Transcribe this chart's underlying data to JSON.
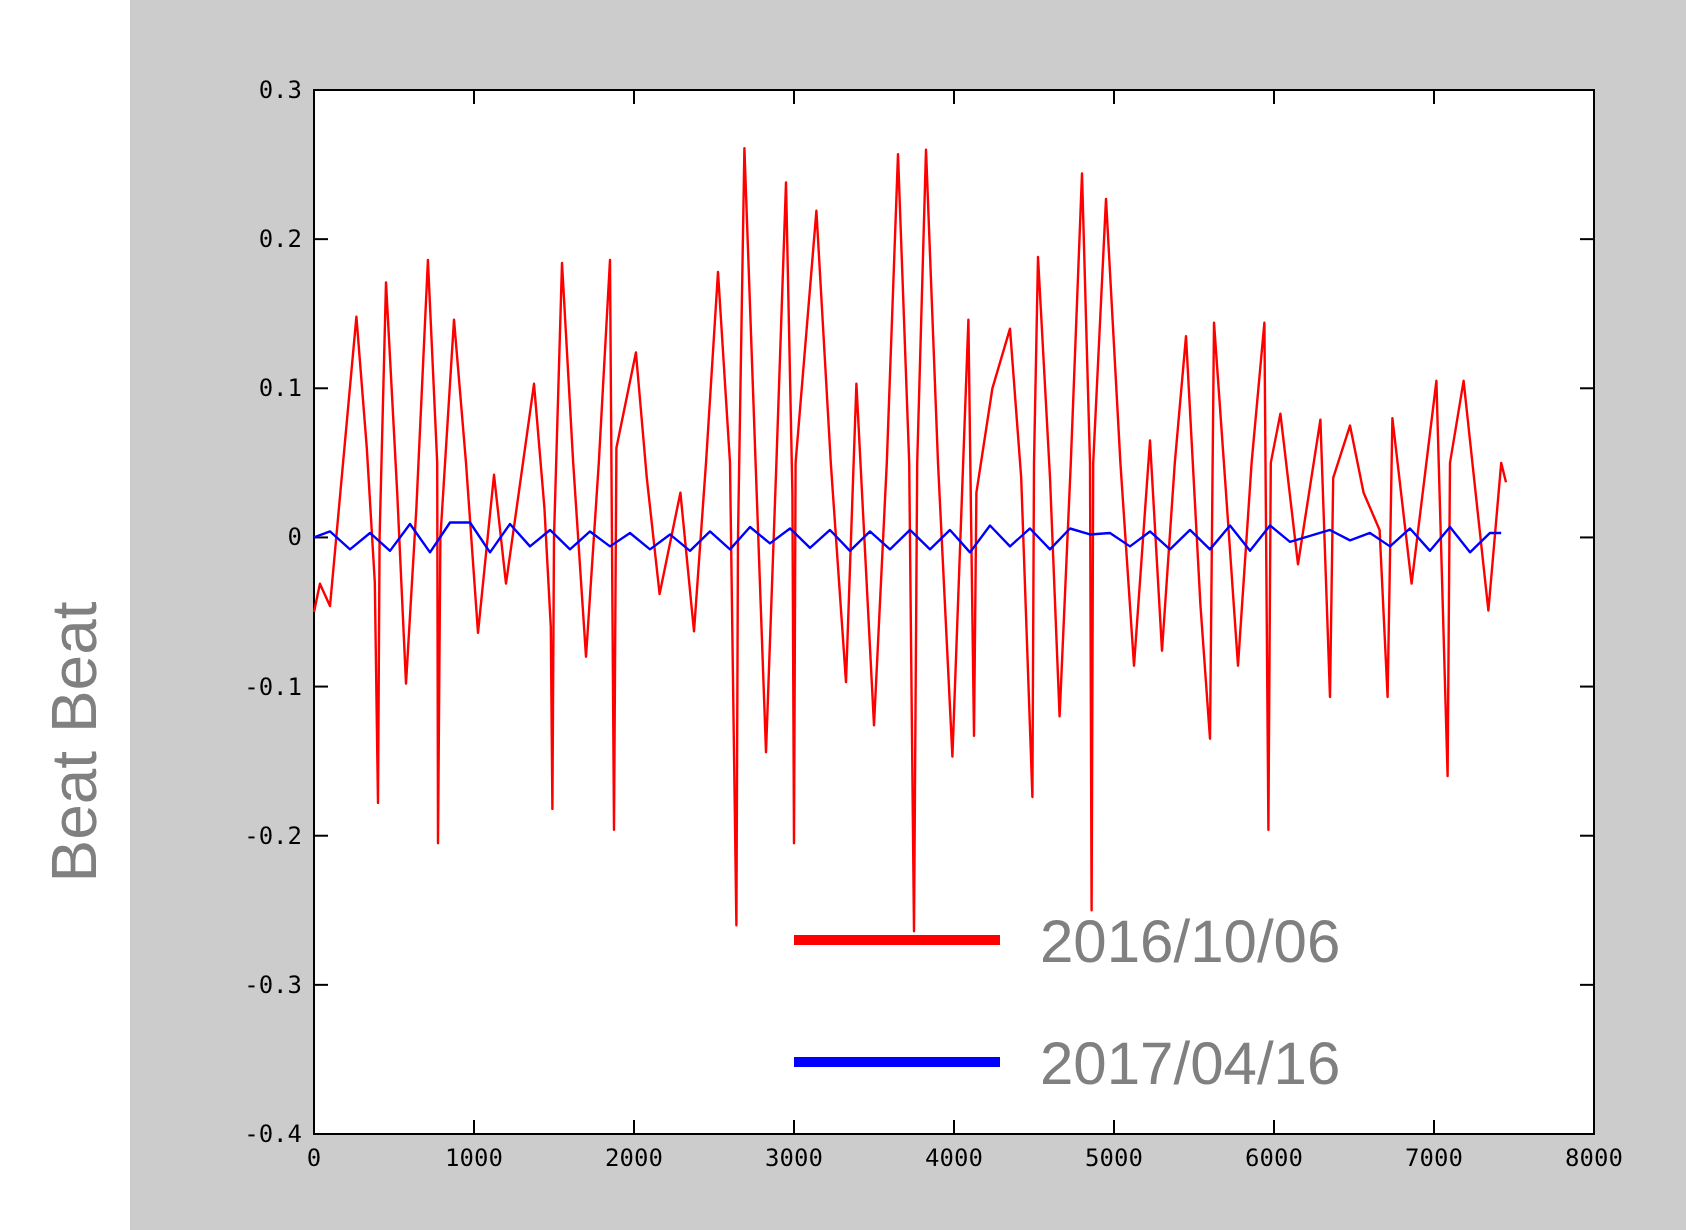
{
  "chart_data": {
    "type": "line",
    "ylabel": "Beat Beat",
    "xlim": [
      0,
      8000
    ],
    "ylim": [
      -0.4,
      0.3
    ],
    "xticks": [
      0,
      1000,
      2000,
      3000,
      4000,
      5000,
      6000,
      7000,
      8000
    ],
    "yticks": [
      -0.4,
      -0.3,
      -0.2,
      -0.1,
      0,
      0.1,
      0.2,
      0.3
    ],
    "grid": false,
    "legend": "bottom",
    "line_style": "solid",
    "series": [
      {
        "name": "2016/10/06",
        "color": "#ff0000",
        "x": [
          0,
          37,
          100,
          265,
          330,
          380,
          400,
          410,
          450,
          520,
          575,
          640,
          712,
          770,
          775,
          790,
          875,
          950,
          1025,
          1125,
          1200,
          1280,
          1375,
          1440,
          1480,
          1490,
          1500,
          1550,
          1620,
          1700,
          1780,
          1850,
          1875,
          1890,
          2012,
          2080,
          2160,
          2290,
          2375,
          2450,
          2525,
          2600,
          2640,
          2650,
          2690,
          2760,
          2825,
          2890,
          2950,
          2990,
          3000,
          3010,
          3140,
          3230,
          3325,
          3390,
          3500,
          3580,
          3650,
          3720,
          3750,
          3770,
          3825,
          3900,
          3990,
          4090,
          4125,
          4140,
          4240,
          4350,
          4420,
          4490,
          4500,
          4525,
          4600,
          4660,
          4730,
          4800,
          4850,
          4860,
          4870,
          4950,
          5040,
          5125,
          5225,
          5300,
          5380,
          5450,
          5540,
          5600,
          5625,
          5700,
          5775,
          5860,
          5940,
          5965,
          5980,
          6040,
          6150,
          6290,
          6350,
          6370,
          6475,
          6560,
          6660,
          6710,
          6740,
          6860,
          7015,
          7085,
          7100,
          7185,
          7260,
          7340,
          7420,
          7450
        ],
        "values": [
          -0.05,
          -0.031,
          -0.046,
          0.148,
          0.06,
          -0.03,
          -0.178,
          0.0,
          0.171,
          0.03,
          -0.098,
          0.02,
          0.186,
          0.05,
          -0.205,
          0.0,
          0.146,
          0.05,
          -0.064,
          0.042,
          -0.031,
          0.03,
          0.103,
          0.02,
          -0.06,
          -0.182,
          0.0,
          0.184,
          0.05,
          -0.08,
          0.05,
          0.186,
          -0.196,
          0.06,
          0.124,
          0.04,
          -0.038,
          0.03,
          -0.063,
          0.05,
          0.178,
          0.05,
          -0.26,
          0.0,
          0.261,
          0.05,
          -0.144,
          0.05,
          0.238,
          0.03,
          -0.205,
          0.05,
          0.219,
          0.05,
          -0.097,
          0.103,
          -0.126,
          0.05,
          0.257,
          0.05,
          -0.264,
          0.05,
          0.26,
          0.05,
          -0.147,
          0.146,
          -0.133,
          0.03,
          0.1,
          0.14,
          0.04,
          -0.174,
          0.05,
          0.188,
          0.04,
          -0.12,
          0.05,
          0.244,
          0.05,
          -0.25,
          0.05,
          0.227,
          0.05,
          -0.086,
          0.065,
          -0.076,
          0.05,
          0.135,
          -0.045,
          -0.135,
          0.144,
          0.03,
          -0.086,
          0.05,
          0.144,
          -0.196,
          0.05,
          0.083,
          -0.018,
          0.079,
          -0.107,
          0.04,
          0.075,
          0.03,
          0.005,
          -0.107,
          0.08,
          -0.031,
          0.105,
          -0.16,
          0.05,
          0.105,
          0.03,
          -0.049,
          0.05,
          0.037
        ]
      },
      {
        "name": "2017/04/16",
        "color": "#0000ff",
        "x": [
          0,
          100,
          225,
          350,
          475,
          600,
          725,
          850,
          975,
          1100,
          1225,
          1350,
          1475,
          1600,
          1725,
          1850,
          1975,
          2100,
          2225,
          2350,
          2475,
          2600,
          2725,
          2850,
          2975,
          3100,
          3225,
          3350,
          3475,
          3600,
          3725,
          3850,
          3975,
          4100,
          4225,
          4350,
          4475,
          4600,
          4725,
          4850,
          4975,
          5100,
          5225,
          5350,
          5475,
          5600,
          5725,
          5850,
          5975,
          6100,
          6225,
          6350,
          6475,
          6600,
          6725,
          6850,
          6975,
          7100,
          7225,
          7350,
          7420
        ],
        "values": [
          0,
          0.004,
          -0.008,
          0.003,
          -0.009,
          0.009,
          -0.01,
          0.01,
          0.01,
          -0.01,
          0.009,
          -0.006,
          0.005,
          -0.008,
          0.004,
          -0.006,
          0.003,
          -0.008,
          0.002,
          -0.009,
          0.004,
          -0.008,
          0.007,
          -0.004,
          0.006,
          -0.007,
          0.005,
          -0.009,
          0.004,
          -0.008,
          0.005,
          -0.008,
          0.005,
          -0.01,
          0.008,
          -0.006,
          0.006,
          -0.008,
          0.006,
          0.002,
          0.003,
          -0.006,
          0.004,
          -0.008,
          0.005,
          -0.008,
          0.008,
          -0.009,
          0.008,
          -0.003,
          0.001,
          0.005,
          -0.002,
          0.003,
          -0.006,
          0.006,
          -0.009,
          0.007,
          -0.01,
          0.003,
          0.003
        ]
      }
    ]
  }
}
